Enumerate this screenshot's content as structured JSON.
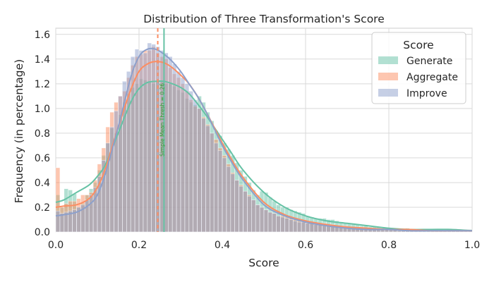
{
  "chart_data": {
    "type": "histogram",
    "title": "Distribution of Three Transformation's Score",
    "xlabel": "Score",
    "ylabel": "Frequency (in percentage)",
    "xlim": [
      0.0,
      1.0
    ],
    "ylim": [
      0.0,
      1.65
    ],
    "xticks": [
      "0.0",
      "0.2",
      "0.4",
      "0.6",
      "0.8",
      "1.0"
    ],
    "yticks": [
      "0.0",
      "0.2",
      "0.4",
      "0.6",
      "0.8",
      "1.0",
      "1.2",
      "1.4",
      "1.6"
    ],
    "grid": true,
    "legend": {
      "title": "Score",
      "placement": "top-right"
    },
    "bin_width": 0.01,
    "series": [
      {
        "name": "Generate",
        "color": "#66c2a5",
        "values": [
          0.3,
          0.2,
          0.35,
          0.34,
          0.31,
          0.2,
          0.23,
          0.3,
          0.35,
          0.4,
          0.5,
          0.62,
          0.72,
          0.84,
          0.8,
          0.95,
          1.05,
          1.12,
          1.17,
          1.2,
          1.24,
          1.23,
          1.22,
          1.2,
          1.22,
          1.22,
          1.2,
          1.2,
          1.18,
          1.15,
          1.13,
          1.08,
          1.05,
          1.03,
          1.1,
          1.05,
          0.97,
          0.9,
          0.82,
          0.78,
          0.72,
          0.67,
          0.62,
          0.56,
          0.5,
          0.45,
          0.4,
          0.34,
          0.3,
          0.33,
          0.32,
          0.28,
          0.25,
          0.22,
          0.2,
          0.2,
          0.18,
          0.17,
          0.16,
          0.15,
          0.13,
          0.12,
          0.11,
          0.11,
          0.11,
          0.1,
          0.1,
          0.09,
          0.08,
          0.07,
          0.07,
          0.07,
          0.06,
          0.05,
          0.05,
          0.04,
          0.04,
          0.04,
          0.03,
          0.03,
          0.03,
          0.03,
          0.02,
          0.02,
          0.03,
          0.02,
          0.02,
          0.02,
          0.02,
          0.02,
          0.02,
          0.02,
          0.02,
          0.01,
          0.02,
          0.02,
          0.02,
          0.02,
          0.02,
          0.02
        ]
      },
      {
        "name": "Aggregate",
        "color": "#fc8d62",
        "values": [
          0.52,
          0.2,
          0.23,
          0.25,
          0.25,
          0.27,
          0.3,
          0.3,
          0.32,
          0.42,
          0.55,
          0.68,
          0.85,
          0.97,
          1.05,
          1.1,
          1.14,
          1.25,
          1.35,
          1.42,
          1.44,
          1.47,
          1.47,
          1.5,
          1.45,
          1.42,
          1.4,
          1.33,
          1.28,
          1.25,
          1.2,
          1.14,
          1.07,
          1.02,
          1.0,
          0.93,
          0.87,
          0.8,
          0.75,
          0.68,
          0.62,
          0.55,
          0.48,
          0.42,
          0.38,
          0.33,
          0.3,
          0.26,
          0.22,
          0.2,
          0.18,
          0.16,
          0.15,
          0.13,
          0.13,
          0.12,
          0.11,
          0.1,
          0.1,
          0.09,
          0.08,
          0.08,
          0.07,
          0.07,
          0.07,
          0.06,
          0.06,
          0.05,
          0.05,
          0.05,
          0.04,
          0.04,
          0.04,
          0.04,
          0.03,
          0.03,
          0.03,
          0.03,
          0.02,
          0.02,
          0.02,
          0.02,
          0.02,
          0.02,
          0.02,
          0.02,
          0.01,
          0.01,
          0.01,
          0.01,
          0.01,
          0.01,
          0.01,
          0.01,
          0.01,
          0.01,
          0.01,
          0.01,
          0.01,
          0.01
        ]
      },
      {
        "name": "Improve",
        "color": "#8da0cb",
        "values": [
          0.17,
          0.15,
          0.16,
          0.17,
          0.18,
          0.2,
          0.22,
          0.26,
          0.3,
          0.36,
          0.45,
          0.58,
          0.72,
          0.85,
          0.98,
          1.1,
          1.22,
          1.3,
          1.42,
          1.48,
          1.47,
          1.45,
          1.53,
          1.52,
          1.5,
          1.47,
          1.45,
          1.42,
          1.36,
          1.3,
          1.25,
          1.2,
          1.14,
          1.07,
          1.0,
          0.92,
          0.86,
          0.8,
          0.72,
          0.66,
          0.6,
          0.53,
          0.47,
          0.42,
          0.37,
          0.33,
          0.29,
          0.26,
          0.22,
          0.2,
          0.18,
          0.16,
          0.15,
          0.13,
          0.12,
          0.11,
          0.1,
          0.09,
          0.08,
          0.08,
          0.07,
          0.07,
          0.06,
          0.06,
          0.05,
          0.05,
          0.05,
          0.04,
          0.04,
          0.04,
          0.03,
          0.03,
          0.03,
          0.03,
          0.02,
          0.02,
          0.02,
          0.02,
          0.02,
          0.02,
          0.02,
          0.02,
          0.01,
          0.01,
          0.01,
          0.01,
          0.01,
          0.01,
          0.01,
          0.01,
          0.01,
          0.01,
          0.01,
          0.01,
          0.01,
          0.01,
          0.01,
          0.01,
          0.01,
          0.01
        ]
      }
    ],
    "kde_series": [
      {
        "name": "Generate",
        "color": "#66c2a5",
        "x": [
          0.0,
          0.02,
          0.05,
          0.08,
          0.1,
          0.12,
          0.15,
          0.18,
          0.2,
          0.22,
          0.24,
          0.26,
          0.28,
          0.3,
          0.32,
          0.34,
          0.36,
          0.38,
          0.4,
          0.42,
          0.45,
          0.5,
          0.55,
          0.6,
          0.65,
          0.7,
          0.75,
          0.8,
          0.85,
          0.9,
          0.95,
          1.0
        ],
        "y": [
          0.24,
          0.26,
          0.32,
          0.38,
          0.45,
          0.55,
          0.8,
          1.05,
          1.16,
          1.21,
          1.22,
          1.22,
          1.2,
          1.17,
          1.12,
          1.04,
          0.95,
          0.85,
          0.75,
          0.65,
          0.5,
          0.32,
          0.2,
          0.13,
          0.09,
          0.07,
          0.05,
          0.03,
          0.02,
          0.02,
          0.02,
          0.01
        ]
      },
      {
        "name": "Aggregate",
        "color": "#fc8d62",
        "x": [
          0.0,
          0.02,
          0.05,
          0.08,
          0.1,
          0.12,
          0.15,
          0.18,
          0.2,
          0.22,
          0.24,
          0.26,
          0.28,
          0.3,
          0.32,
          0.34,
          0.36,
          0.38,
          0.4,
          0.42,
          0.45,
          0.5,
          0.55,
          0.6,
          0.65,
          0.7,
          0.75,
          0.8,
          0.85,
          0.9,
          0.95,
          1.0
        ],
        "y": [
          0.2,
          0.21,
          0.22,
          0.27,
          0.36,
          0.52,
          0.85,
          1.15,
          1.3,
          1.36,
          1.38,
          1.37,
          1.33,
          1.27,
          1.2,
          1.1,
          0.98,
          0.85,
          0.72,
          0.6,
          0.44,
          0.24,
          0.14,
          0.09,
          0.06,
          0.04,
          0.03,
          0.02,
          0.02,
          0.01,
          0.01,
          0.01
        ]
      },
      {
        "name": "Improve",
        "color": "#8da0cb",
        "x": [
          0.0,
          0.02,
          0.05,
          0.08,
          0.1,
          0.12,
          0.15,
          0.18,
          0.2,
          0.22,
          0.24,
          0.26,
          0.28,
          0.3,
          0.32,
          0.34,
          0.36,
          0.38,
          0.4,
          0.42,
          0.45,
          0.5,
          0.55,
          0.6,
          0.65,
          0.7,
          0.75,
          0.8,
          0.85,
          0.9,
          0.95,
          1.0
        ],
        "y": [
          0.13,
          0.14,
          0.16,
          0.22,
          0.3,
          0.48,
          0.85,
          1.25,
          1.42,
          1.48,
          1.48,
          1.44,
          1.38,
          1.3,
          1.2,
          1.1,
          0.98,
          0.84,
          0.7,
          0.58,
          0.42,
          0.22,
          0.13,
          0.08,
          0.05,
          0.03,
          0.02,
          0.02,
          0.01,
          0.01,
          0.01,
          0.01
        ]
      }
    ],
    "reference_lines": [
      {
        "x": 0.245,
        "color": "#fc8d62",
        "style": "dashed"
      },
      {
        "x": 0.26,
        "color": "#66c2a5",
        "style": "solid",
        "label": "Simple Mean Thresh = 0.26"
      }
    ]
  }
}
